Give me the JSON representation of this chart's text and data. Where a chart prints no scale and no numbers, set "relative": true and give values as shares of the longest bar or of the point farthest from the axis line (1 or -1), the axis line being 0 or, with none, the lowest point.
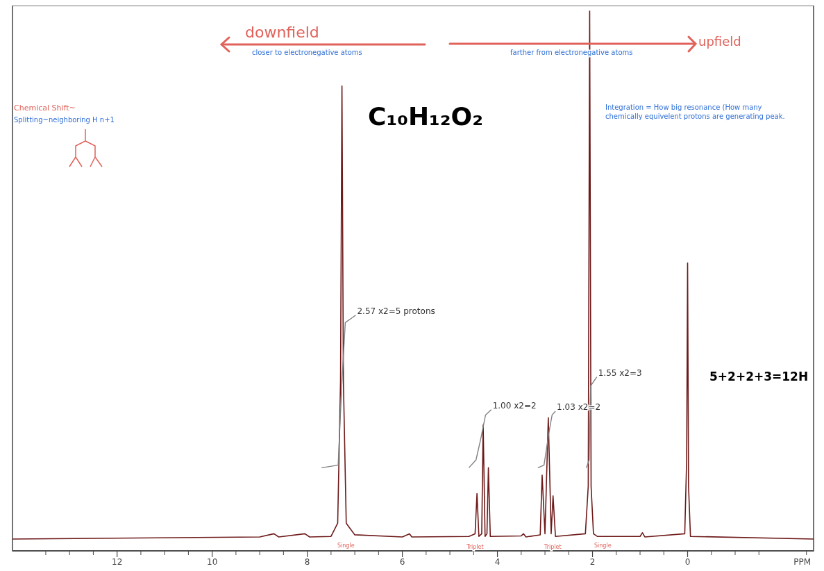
{
  "chart_data": {
    "type": "line",
    "relative": true,
    "xlabel": "PPM",
    "xlim": [
      14.2,
      -2.65
    ],
    "xticks": [
      12,
      10,
      8,
      6,
      4,
      2,
      0
    ],
    "grid": false,
    "marker": "none",
    "line_style": "solid",
    "series": [
      {
        "color": "#6e1a1a",
        "x": [
          14.2,
          9.0,
          8.7,
          8.6,
          8.05,
          7.95,
          7.5,
          7.36,
          7.3,
          7.27,
          7.24,
          7.18,
          7.1,
          7.0,
          6.0,
          5.85,
          5.8,
          4.6,
          4.47,
          4.43,
          4.39,
          4.33,
          4.3,
          4.26,
          4.22,
          4.19,
          4.15,
          3.5,
          3.45,
          3.4,
          3.1,
          3.06,
          3.0,
          2.93,
          2.87,
          2.83,
          2.78,
          2.15,
          2.09,
          2.06,
          2.03,
          1.98,
          1.9,
          1.0,
          0.95,
          0.9,
          0.06,
          0.02,
          0.0,
          -0.02,
          -0.06,
          -2.65
        ],
        "values": [
          0,
          0.004,
          0.01,
          0.004,
          0.01,
          0.004,
          0.005,
          0.03,
          0.3,
          0.858,
          0.3,
          0.03,
          0.02,
          0.008,
          0.004,
          0.01,
          0.004,
          0.005,
          0.01,
          0.086,
          0.005,
          0.01,
          0.216,
          0.005,
          0.01,
          0.135,
          0.005,
          0.006,
          0.01,
          0.004,
          0.008,
          0.121,
          0.01,
          0.23,
          0.01,
          0.082,
          0.005,
          0.01,
          0.1,
          1,
          0.1,
          0.01,
          0.005,
          0.005,
          0.012,
          0.004,
          0.01,
          0.15,
          0.523,
          0.1,
          0.005,
          0
        ]
      },
      {
        "color": "#808080",
        "x": [
          7.7,
          7.35,
          7.27,
          7.2,
          6.98,
          null,
          4.6,
          4.45,
          4.35,
          4.25,
          4.13,
          null,
          3.15,
          3.02,
          2.92,
          2.85,
          2.78,
          null,
          2.13,
          2.07,
          2.04,
          1.91
        ],
        "values": [
          0.135,
          0.14,
          0.3,
          0.41,
          0.424,
          null,
          0.135,
          0.15,
          0.19,
          0.235,
          0.245,
          null,
          0.135,
          0.14,
          0.2,
          0.235,
          0.242,
          null,
          0.135,
          0.15,
          0.29,
          0.307
        ]
      }
    ],
    "annotations": [
      {
        "text": "2.57 x2=5 protons",
        "x": 6.98,
        "y": 0.424
      },
      {
        "text": "1.00 x2=2",
        "x": 4.13,
        "y": 0.245
      },
      {
        "text": "1.03 x2=2",
        "x": 2.78,
        "y": 0.242
      },
      {
        "text": "1.55 x2=3",
        "x": 1.91,
        "y": 0.307
      },
      "Single",
      "Triplet",
      "Triplet",
      "Single",
      "downfield",
      "closer to electronegative atoms",
      "farther from electronegative atoms",
      "upfield",
      "Chemical Shift~",
      "Splitting~neighboring H n+1",
      "C₁₀H₁₂O₂",
      "Integration = How big resonance (How many chemically equivelent protons are generating peak.",
      "5+2+2+3=12H"
    ]
  }
}
